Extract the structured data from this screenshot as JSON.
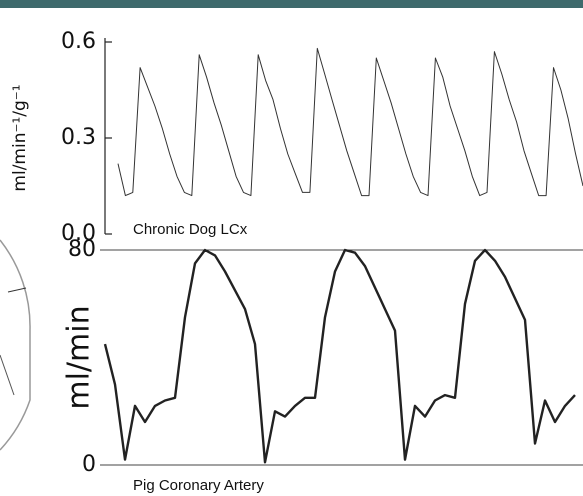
{
  "chart_data": [
    {
      "type": "line",
      "ylabel": "ml/min⁻¹/g⁻¹",
      "annotation": "Chronic Dog LCx",
      "ylim": [
        0,
        0.6
      ],
      "yticks": [
        {
          "value": 0,
          "label": "0.0"
        },
        0.3,
        0.6
      ],
      "grid": false,
      "color": "#333",
      "values": [
        0.22,
        0.12,
        0.13,
        0.52,
        0.46,
        0.4,
        0.33,
        0.25,
        0.18,
        0.13,
        0.12,
        0.56,
        0.49,
        0.41,
        0.34,
        0.26,
        0.18,
        0.13,
        0.12,
        0.56,
        0.48,
        0.42,
        0.33,
        0.25,
        0.19,
        0.13,
        0.13,
        0.58,
        0.5,
        0.42,
        0.34,
        0.26,
        0.19,
        0.12,
        0.12,
        0.55,
        0.48,
        0.41,
        0.33,
        0.25,
        0.18,
        0.13,
        0.12,
        0.55,
        0.49,
        0.4,
        0.33,
        0.26,
        0.18,
        0.12,
        0.13,
        0.57,
        0.5,
        0.42,
        0.35,
        0.26,
        0.19,
        0.12,
        0.12,
        0.52,
        0.45,
        0.36,
        0.25,
        0.15
      ]
    },
    {
      "type": "line",
      "ylabel": "ml/min",
      "annotation": "Pig Coronary Artery",
      "ylim": [
        0,
        80
      ],
      "yticks": [
        0,
        80
      ],
      "grid": true,
      "color": "#222",
      "values": [
        45,
        30,
        2,
        22,
        16,
        22,
        24,
        25,
        55,
        75,
        80,
        78,
        72,
        65,
        58,
        45,
        1,
        20,
        18,
        22,
        25,
        25,
        55,
        72,
        80,
        79,
        74,
        66,
        58,
        50,
        2,
        22,
        18,
        24,
        26,
        25,
        60,
        76,
        80,
        76,
        70,
        62,
        54,
        8,
        24,
        16,
        22,
        26
      ]
    }
  ]
}
